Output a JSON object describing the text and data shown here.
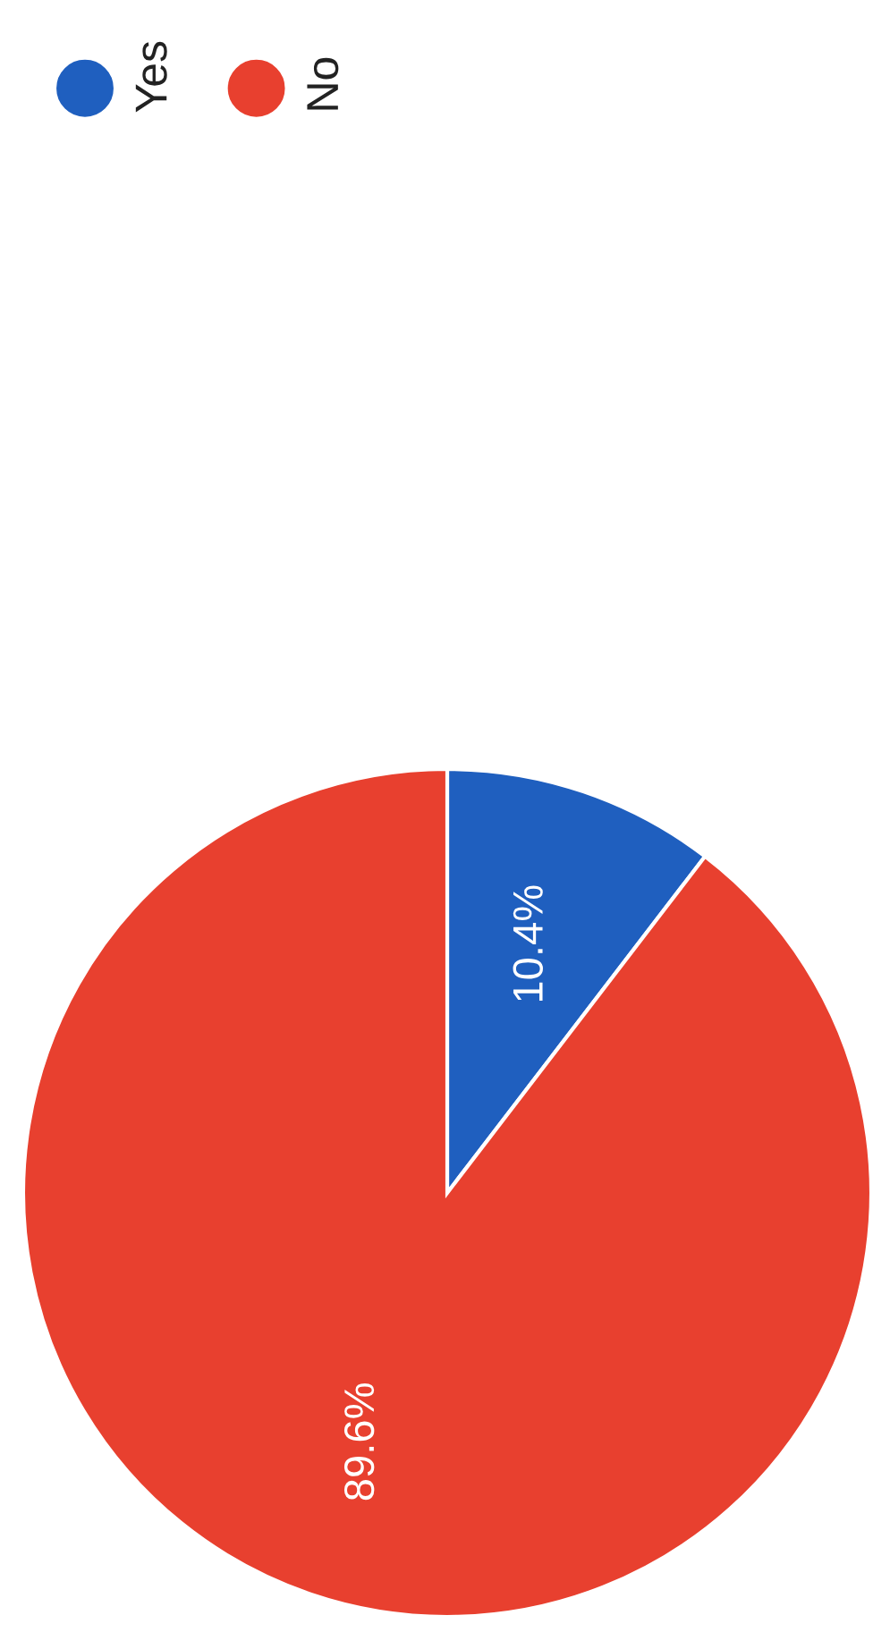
{
  "chart_data": {
    "type": "pie",
    "categories": [
      "Yes",
      "No"
    ],
    "values": [
      10.4,
      89.6
    ],
    "colors": [
      "#1f5fbf",
      "#e8402f"
    ],
    "value_labels": [
      "10.4%",
      "89.6%"
    ],
    "legend": "top left"
  }
}
